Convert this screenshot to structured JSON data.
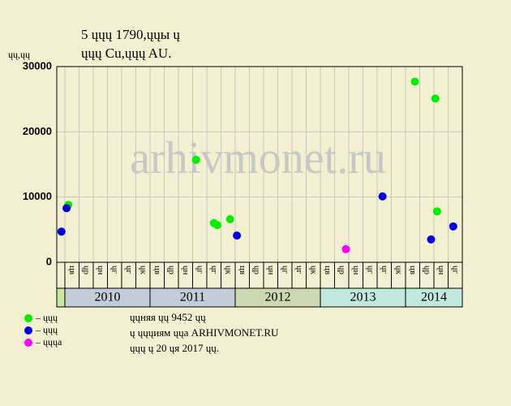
{
  "chart_data": {
    "type": "scatter",
    "title": "5 ųųų 1790,ųųы ų",
    "subtitle": "ųųų Cu,ųųų AU.",
    "ylabel": "ųų,ųų",
    "watermark": "arhivmonet.ru",
    "ylim": [
      0,
      30000
    ],
    "yticks": [
      0,
      10000,
      20000,
      30000
    ],
    "xlim": [
      2009.905,
      2014.667
    ],
    "grid": true,
    "years": [
      {
        "label": "2010",
        "start": 2010,
        "color": "#c4ccd8"
      },
      {
        "label": "2011",
        "start": 2011,
        "color": "#c4ccd8"
      },
      {
        "label": "2012",
        "start": 2012,
        "color": "#ccd8b0"
      },
      {
        "label": "2013",
        "start": 2013,
        "color": "#c0e8dc"
      },
      {
        "label": "2014",
        "start": 2014,
        "color": "#c0e8dc"
      }
    ],
    "pre_color": "#c8e8a0",
    "month_labels": [
      "цв",
      "ųр",
      "ųн",
      "ųг",
      "ųг",
      "ųк",
      "цв",
      "ųр",
      "ųн",
      "ųг",
      "ųг",
      "ųк",
      "цв",
      "ųр",
      "ųн",
      "ųг",
      "ųг",
      "ųк",
      "цв",
      "ųр",
      "ųн",
      "ųг",
      "ųг",
      "ųк",
      "цв",
      "ųр",
      "ųн",
      "ųг"
    ],
    "series": [
      {
        "name": "– ųųų",
        "color": "#00ee00",
        "x": [
          2010.04,
          2011.54,
          2011.75,
          2011.79,
          2011.94,
          2014.11,
          2014.35,
          2014.37
        ],
        "values": [
          8800,
          15700,
          6000,
          5700,
          6600,
          27700,
          25100,
          7800
        ]
      },
      {
        "name": "– ųųų",
        "color": "#0000dd",
        "x": [
          2009.96,
          2010.02,
          2012.02,
          2013.73,
          2014.3,
          2014.56
        ],
        "values": [
          4700,
          8300,
          4100,
          10100,
          3500,
          5500
        ]
      },
      {
        "name": "– ųųųa",
        "color": "#ff00ff",
        "x": [
          2013.3
        ],
        "values": [
          2000
        ]
      }
    ],
    "footer": [
      "ųųняя ųų 9452 ųų",
      "ų ųųųиям ųųа ARHIVMONET.RU",
      "ųųų ų 20 ųя 2017 ųų."
    ]
  }
}
